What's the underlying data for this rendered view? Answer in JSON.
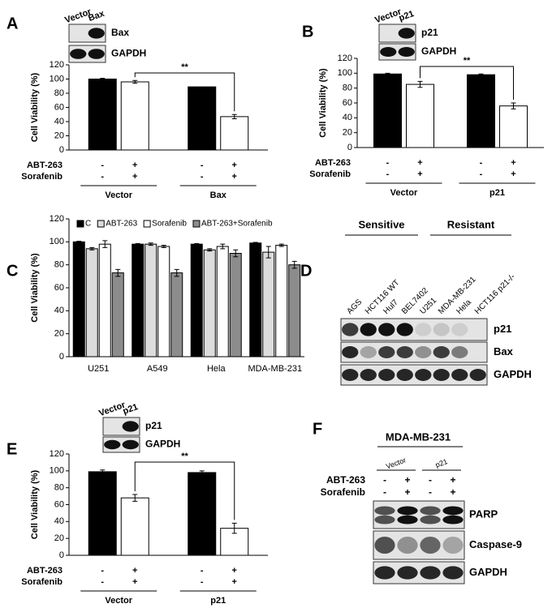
{
  "chart_data": [
    {
      "type": "bar",
      "panel": "A",
      "ylabel": "Cell Viability (%)",
      "ylim": [
        0,
        120
      ],
      "yticks": [
        0,
        20,
        40,
        60,
        80,
        100,
        120
      ],
      "categories": [
        "Vector",
        "Bax"
      ],
      "series": [
        {
          "color": "#000000",
          "values": [
            100,
            89
          ],
          "errors": [
            1,
            null
          ]
        },
        {
          "color": "#ffffff",
          "values": [
            96,
            47
          ],
          "errors": [
            2,
            3
          ]
        }
      ],
      "treatments": [
        {
          "label": "ABT-263",
          "signs": [
            "-",
            "+",
            "-",
            "+"
          ]
        },
        {
          "label": "Sorafenib",
          "signs": [
            "-",
            "+",
            "-",
            "+"
          ]
        }
      ],
      "annotation": "**",
      "blot": {
        "lanes": [
          "Vector",
          "Bax"
        ],
        "rows": [
          "Bax",
          "GAPDH"
        ]
      }
    },
    {
      "type": "bar",
      "panel": "B",
      "ylabel": "Cell Viability (%)",
      "ylim": [
        0,
        120
      ],
      "yticks": [
        0,
        20,
        40,
        60,
        80,
        100,
        120
      ],
      "categories": [
        "Vector",
        "p21"
      ],
      "series": [
        {
          "color": "#000000",
          "values": [
            99,
            98
          ],
          "errors": [
            1,
            1
          ]
        },
        {
          "color": "#ffffff",
          "values": [
            85,
            56
          ],
          "errors": [
            4,
            4
          ]
        }
      ],
      "treatments": [
        {
          "label": "ABT-263",
          "signs": [
            "-",
            "+",
            "-",
            "+"
          ]
        },
        {
          "label": "Sorafenib",
          "signs": [
            "-",
            "+",
            "-",
            "+"
          ]
        }
      ],
      "annotation": "**",
      "blot": {
        "lanes": [
          "Vector",
          "p21"
        ],
        "rows": [
          "p21",
          "GAPDH"
        ]
      }
    },
    {
      "type": "bar",
      "panel": "C",
      "ylabel": "Cell Viability (%)",
      "ylim": [
        0,
        120
      ],
      "yticks": [
        0,
        20,
        40,
        60,
        80,
        100,
        120
      ],
      "categories": [
        "U251",
        "A549",
        "Hela",
        "MDA-MB-231"
      ],
      "legend": "top",
      "series": [
        {
          "name": "C",
          "color": "#000000",
          "values": [
            100,
            98,
            98,
            99
          ],
          "errors": [
            0.5,
            0.5,
            0.5,
            0.5
          ]
        },
        {
          "name": "ABT-263",
          "color": "#dcdcdc",
          "values": [
            94,
            98,
            93,
            91
          ],
          "errors": [
            1,
            1,
            1,
            5
          ]
        },
        {
          "name": "Sorafenib",
          "color": "#ffffff",
          "values": [
            98,
            96,
            96,
            97
          ],
          "errors": [
            3,
            1,
            2,
            1
          ]
        },
        {
          "name": "ABT-263+Sorafenib",
          "color": "#8c8c8c",
          "values": [
            73,
            73,
            90,
            80
          ],
          "errors": [
            3,
            3,
            3,
            3
          ]
        }
      ]
    },
    {
      "type": "bar",
      "panel": "E",
      "ylabel": "Cell Viability (%)",
      "ylim": [
        0,
        120
      ],
      "yticks": [
        0,
        20,
        40,
        60,
        80,
        100,
        120
      ],
      "categories": [
        "Vector",
        "p21"
      ],
      "series": [
        {
          "color": "#000000",
          "values": [
            99,
            98
          ],
          "errors": [
            2,
            2
          ]
        },
        {
          "color": "#ffffff",
          "values": [
            68,
            32
          ],
          "errors": [
            4,
            6
          ]
        }
      ],
      "treatments": [
        {
          "label": "ABT-263",
          "signs": [
            "-",
            "+",
            "-",
            "+"
          ]
        },
        {
          "label": "Sorafenib",
          "signs": [
            "-",
            "+",
            "-",
            "+"
          ]
        }
      ],
      "annotation": "**",
      "blot": {
        "lanes": [
          "Vector",
          "p21"
        ],
        "rows": [
          "p21",
          "GAPDH"
        ]
      }
    }
  ],
  "blot_panels": [
    {
      "panel": "D",
      "groups": [
        "Sensitive",
        "Resistant"
      ],
      "lanes": [
        "AGS",
        "HCT116 WT",
        "Hul7",
        "BEL7402",
        "U251",
        "MDA-MB-231",
        "Hela",
        "HCT116 p21-/-"
      ],
      "rows": [
        "p21",
        "Bax",
        "GAPDH"
      ]
    },
    {
      "panel": "F",
      "cell_line": "MDA-MB-231",
      "groups": [
        "Vector",
        "p21"
      ],
      "treatments": [
        {
          "label": "ABT-263",
          "signs": [
            "-",
            "+",
            "-",
            "+"
          ]
        },
        {
          "label": "Sorafenib",
          "signs": [
            "-",
            "+",
            "-",
            "+"
          ]
        }
      ],
      "rows": [
        "PARP",
        "Caspase-9",
        "GAPDH"
      ]
    }
  ]
}
